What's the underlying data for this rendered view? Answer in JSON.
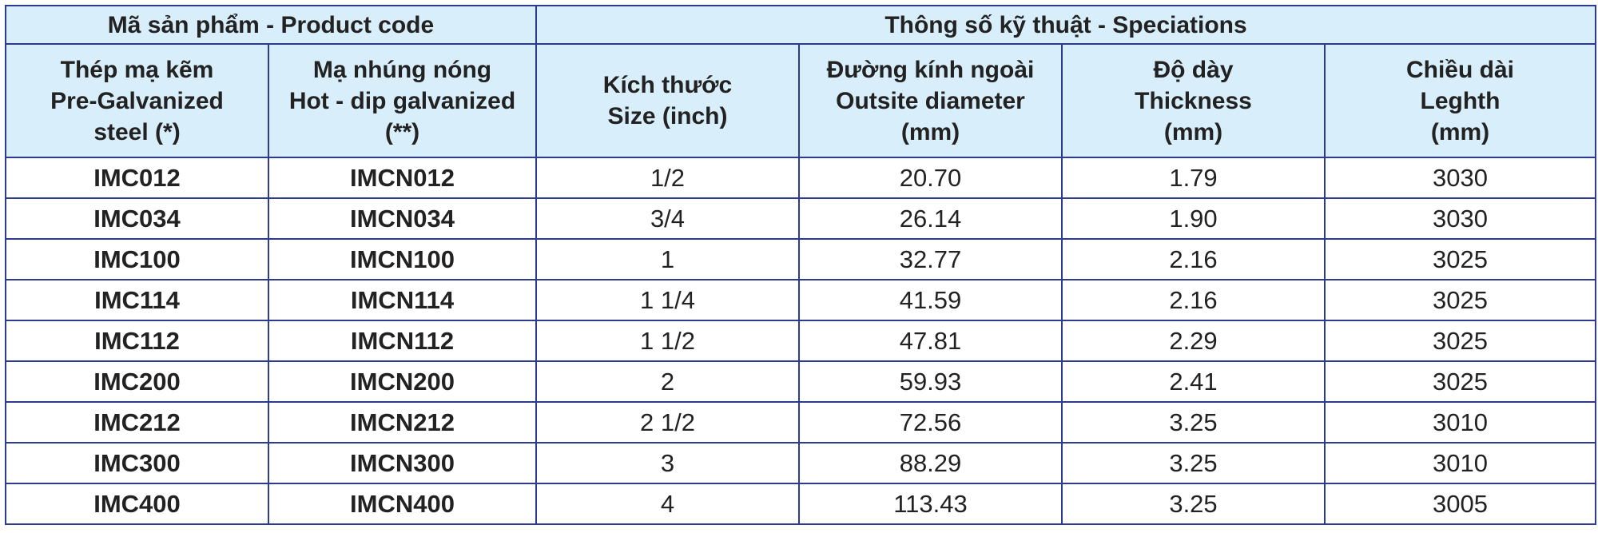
{
  "table": {
    "groups": [
      "Mã sản phẩm - Product code",
      "Thông số kỹ thuật - Speciations"
    ],
    "headers": [
      [
        "Thép mạ kẽm",
        "Pre-Galvanized",
        "steel (*)"
      ],
      [
        "Mạ nhúng nóng",
        "Hot - dip galvanized",
        "(**)"
      ],
      [
        "Kích thước",
        "Size (inch)"
      ],
      [
        "Đường kính ngoài",
        "Outsite diameter",
        "(mm)"
      ],
      [
        "Độ dày",
        "Thickness",
        "(mm)"
      ],
      [
        "Chiều dài",
        "Leghth",
        "(mm)"
      ]
    ],
    "rows": [
      [
        "IMC012",
        "IMCN012",
        "1/2",
        "20.70",
        "1.79",
        "3030"
      ],
      [
        "IMC034",
        "IMCN034",
        "3/4",
        "26.14",
        "1.90",
        "3030"
      ],
      [
        "IMC100",
        "IMCN100",
        "1",
        "32.77",
        "2.16",
        "3025"
      ],
      [
        "IMC114",
        "IMCN114",
        "1 1/4",
        "41.59",
        "2.16",
        "3025"
      ],
      [
        "IMC112",
        "IMCN112",
        "1 1/2",
        "47.81",
        "2.29",
        "3025"
      ],
      [
        "IMC200",
        "IMCN200",
        "2",
        "59.93",
        "2.41",
        "3025"
      ],
      [
        "IMC212",
        "IMCN212",
        "2 1/2",
        "72.56",
        "3.25",
        "3010"
      ],
      [
        "IMC300",
        "IMCN300",
        "3",
        "88.29",
        "3.25",
        "3010"
      ],
      [
        "IMC400",
        "IMCN400",
        "4",
        "113.43",
        "3.25",
        "3005"
      ]
    ]
  }
}
